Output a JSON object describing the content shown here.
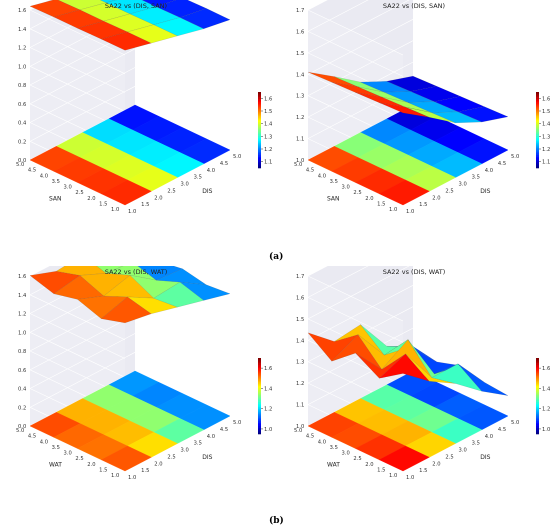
{
  "captions": {
    "a": "(a)",
    "b": "(b)"
  },
  "chart_data": [
    {
      "type": "surface3d",
      "title": "SA22 vs (DIS, SAN)",
      "xlabel": "DIS",
      "ylabel": "SAN",
      "xticks": [
        "1.0",
        "1.5",
        "2.0",
        "2.5",
        "3.0",
        "3.5",
        "4.0",
        "4.5",
        "5.0"
      ],
      "yticks": [
        "1.0",
        "1.5",
        "2.0",
        "2.5",
        "3.0",
        "3.5",
        "4.0",
        "4.5",
        "5.0"
      ],
      "zticks": [
        "0.0",
        "0.2",
        "0.4",
        "0.6",
        "0.8",
        "1.0",
        "1.2",
        "1.4",
        "1.6"
      ],
      "colorbar_ticks": [
        "1.1",
        "1.2",
        "1.3",
        "1.4",
        "1.5",
        "1.6"
      ],
      "zlim": [
        0.0,
        1.6
      ],
      "colorbar_range": [
        1.05,
        1.65
      ],
      "x": [
        1,
        2,
        3,
        4,
        5
      ],
      "y": [
        1,
        2,
        3,
        4,
        5
      ],
      "z": [
        [
          1.62,
          1.48,
          1.34,
          1.2,
          1.1
        ],
        [
          1.62,
          1.48,
          1.34,
          1.2,
          1.1
        ],
        [
          1.61,
          1.47,
          1.33,
          1.19,
          1.09
        ],
        [
          1.61,
          1.47,
          1.33,
          1.19,
          1.09
        ],
        [
          1.6,
          1.46,
          1.32,
          1.18,
          1.08
        ]
      ]
    },
    {
      "type": "surface3d",
      "title": "SA22 vs (DIS, SAN)",
      "xlabel": "DIS",
      "ylabel": "SAN",
      "xticks": [
        "1.0",
        "1.5",
        "2.0",
        "2.5",
        "3.0",
        "3.5",
        "4.0",
        "4.5",
        "5.0"
      ],
      "yticks": [
        "1.0",
        "1.5",
        "2.0",
        "2.5",
        "3.0",
        "3.5",
        "4.0",
        "4.5",
        "5.0"
      ],
      "zticks": [
        "1.0",
        "1.1",
        "1.2",
        "1.3",
        "1.4",
        "1.5",
        "1.6",
        "1.7"
      ],
      "colorbar_ticks": [
        "1.1",
        "1.2",
        "1.3",
        "1.4",
        "1.5",
        "1.6"
      ],
      "zlim": [
        1.0,
        1.7
      ],
      "colorbar_range": [
        1.05,
        1.65
      ],
      "x": [
        1,
        2,
        3,
        4,
        5
      ],
      "y": [
        1,
        2,
        3,
        4,
        5
      ],
      "z": [
        [
          1.65,
          1.48,
          1.3,
          1.18,
          1.1
        ],
        [
          1.64,
          1.47,
          1.29,
          1.17,
          1.09
        ],
        [
          1.63,
          1.46,
          1.28,
          1.16,
          1.08
        ],
        [
          1.62,
          1.45,
          1.27,
          1.15,
          1.07
        ],
        [
          1.61,
          1.44,
          1.26,
          1.14,
          1.06
        ]
      ]
    },
    {
      "type": "surface3d",
      "title": "SA22 vs (DIS, WAT)",
      "xlabel": "DIS",
      "ylabel": "WAT",
      "xticks": [
        "1.0",
        "1.5",
        "2.0",
        "2.5",
        "3.0",
        "3.5",
        "4.0",
        "4.5",
        "5.0"
      ],
      "yticks": [
        "1.0",
        "1.5",
        "2.0",
        "2.5",
        "3.0",
        "3.5",
        "4.0",
        "4.5",
        "5.0"
      ],
      "zticks": [
        "0.0",
        "0.2",
        "0.4",
        "0.6",
        "0.8",
        "1.0",
        "1.2",
        "1.4",
        "1.6"
      ],
      "colorbar_ticks": [
        "1.0",
        "1.2",
        "1.4",
        "1.6"
      ],
      "zlim": [
        0.0,
        1.6
      ],
      "colorbar_range": [
        0.95,
        1.7
      ],
      "x": [
        1,
        2,
        3,
        4,
        5
      ],
      "y": [
        1,
        2,
        3,
        4,
        5
      ],
      "z": [
        [
          1.6,
          1.5,
          1.35,
          1.2,
          1.05
        ],
        [
          1.45,
          1.62,
          1.3,
          1.35,
          1.0
        ],
        [
          1.62,
          1.4,
          1.55,
          1.15,
          1.1
        ],
        [
          1.5,
          1.6,
          1.35,
          1.3,
          1.02
        ],
        [
          1.65,
          1.45,
          1.5,
          1.2,
          1.1
        ]
      ]
    },
    {
      "type": "surface3d",
      "title": "SA22 vs (DIS, WAT)",
      "xlabel": "DIS",
      "ylabel": "WAT",
      "xticks": [
        "1.0",
        "1.5",
        "2.0",
        "2.5",
        "3.0",
        "3.5",
        "4.0",
        "4.5",
        "5.0"
      ],
      "yticks": [
        "1.0",
        "1.5",
        "2.0",
        "2.5",
        "3.0",
        "3.5",
        "4.0",
        "4.5",
        "5.0"
      ],
      "zticks": [
        "1.0",
        "1.1",
        "1.2",
        "1.3",
        "1.4",
        "1.5",
        "1.6",
        "1.7"
      ],
      "colorbar_ticks": [
        "1.0",
        "1.2",
        "1.4",
        "1.6"
      ],
      "zlim": [
        1.0,
        1.7
      ],
      "colorbar_range": [
        0.95,
        1.7
      ],
      "x": [
        1,
        2,
        3,
        4,
        5
      ],
      "y": [
        1,
        2,
        3,
        4,
        5
      ],
      "z": [
        [
          1.7,
          1.5,
          1.35,
          1.15,
          0.98
        ],
        [
          1.55,
          1.65,
          1.3,
          1.3,
          1.0
        ],
        [
          1.68,
          1.4,
          1.55,
          1.1,
          1.05
        ],
        [
          1.5,
          1.62,
          1.3,
          1.25,
          0.98
        ],
        [
          1.66,
          1.45,
          1.48,
          1.15,
          1.02
        ]
      ]
    }
  ]
}
